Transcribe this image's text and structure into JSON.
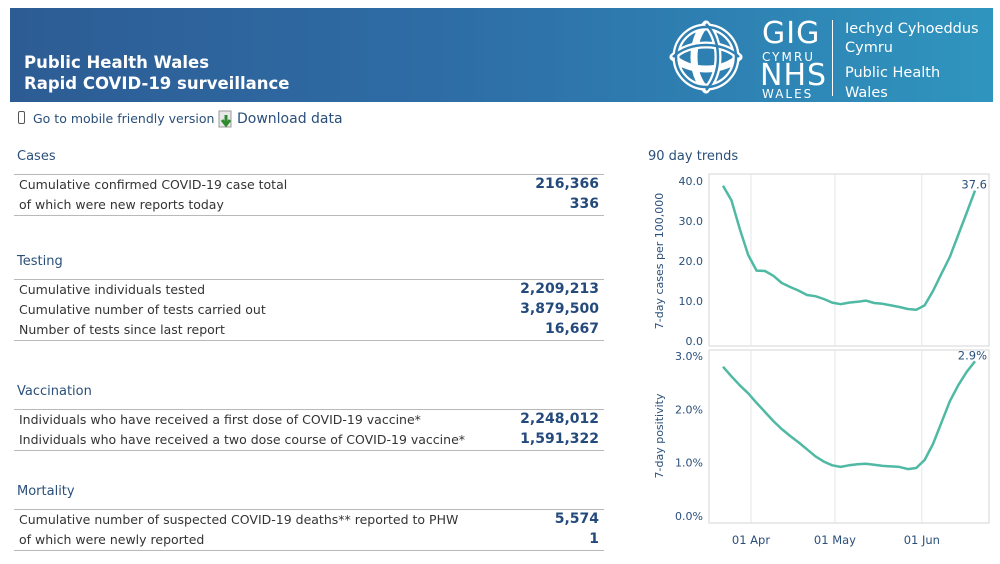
{
  "header": {
    "title_line1": "Public Health Wales",
    "title_line2": "Rapid COVID-19 surveillance",
    "logo_gig": "GIG",
    "logo_cymru": "CYMRU",
    "logo_nhs": "NHS",
    "logo_wales": "WALES",
    "org_line1": "Iechyd Cyhoeddus",
    "org_line2": "Cymru",
    "org_line3": "Public Health",
    "org_line4": "Wales"
  },
  "toolbar": {
    "mobile_link": "Go to mobile friendly version",
    "download_link": "Download data"
  },
  "sections": {
    "cases": {
      "title": "Cases",
      "rows": [
        {
          "label": "Cumulative confirmed COVID-19 case total",
          "value": "216,366"
        },
        {
          "label": "of which were new reports today",
          "value": "336"
        }
      ]
    },
    "testing": {
      "title": "Testing",
      "rows": [
        {
          "label": "Cumulative individuals tested",
          "value": "2,209,213"
        },
        {
          "label": "Cumulative number of tests carried out",
          "value": "3,879,500"
        },
        {
          "label": "Number of tests since last report",
          "value": "16,667"
        }
      ]
    },
    "vaccination": {
      "title": "Vaccination",
      "rows": [
        {
          "label": "Individuals who have received a first dose of COVID-19 vaccine*",
          "value": "2,248,012"
        },
        {
          "label": "Individuals who have received a two dose course of COVID-19 vaccine*",
          "value": "1,591,322"
        }
      ]
    },
    "mortality": {
      "title": "Mortality",
      "rows": [
        {
          "label": "Cumulative number of suspected COVID-19 deaths** reported to PHW",
          "value": "5,574"
        },
        {
          "label": "of which were newly reported",
          "value": "1"
        }
      ]
    }
  },
  "trends": {
    "title": "90 day trends",
    "line_color": "#4fb9a4",
    "x_ticks": [
      "01 Apr",
      "01 May",
      "01 Jun"
    ]
  },
  "chart_data": [
    {
      "type": "line",
      "ylabel": "7-day cases per 100,000",
      "ylim": [
        0,
        40
      ],
      "y_ticks": [
        "40.0",
        "30.0",
        "20.0",
        "10.0",
        "0.0"
      ],
      "end_label": "37.6",
      "x": [
        "22 Mar",
        "25 Mar",
        "28 Mar",
        "31 Mar",
        "03 Apr",
        "06 Apr",
        "09 Apr",
        "12 Apr",
        "15 Apr",
        "18 Apr",
        "21 Apr",
        "24 Apr",
        "27 Apr",
        "30 Apr",
        "03 May",
        "06 May",
        "09 May",
        "12 May",
        "15 May",
        "18 May",
        "21 May",
        "24 May",
        "27 May",
        "30 May",
        "02 Jun",
        "05 Jun",
        "08 Jun",
        "11 Jun",
        "14 Jun",
        "17 Jun",
        "19 Jun"
      ],
      "series": [
        {
          "values": [
            38.8,
            35.2,
            28.0,
            21.5,
            17.6,
            17.5,
            16.3,
            14.5,
            13.5,
            12.6,
            11.5,
            11.2,
            10.5,
            9.6,
            9.2,
            9.6,
            9.8,
            10.1,
            9.5,
            9.3,
            8.9,
            8.5,
            8.0,
            7.8,
            8.9,
            12.5,
            16.8,
            21.0,
            26.5,
            32.0,
            37.6
          ]
        }
      ]
    },
    {
      "type": "line",
      "ylabel": "7-day positivity",
      "ylim": [
        0,
        3
      ],
      "y_ticks": [
        "3.0%",
        "2.0%",
        "1.0%",
        "0.0%"
      ],
      "end_label": "2.9%",
      "x": [
        "22 Mar",
        "25 Mar",
        "28 Mar",
        "31 Mar",
        "03 Apr",
        "06 Apr",
        "09 Apr",
        "12 Apr",
        "15 Apr",
        "18 Apr",
        "21 Apr",
        "24 Apr",
        "27 Apr",
        "30 Apr",
        "03 May",
        "06 May",
        "09 May",
        "12 May",
        "15 May",
        "18 May",
        "21 May",
        "24 May",
        "27 May",
        "30 May",
        "02 Jun",
        "05 Jun",
        "08 Jun",
        "11 Jun",
        "14 Jun",
        "17 Jun",
        "19 Jun"
      ],
      "series": [
        {
          "values": [
            2.8,
            2.62,
            2.45,
            2.3,
            2.12,
            1.95,
            1.78,
            1.63,
            1.5,
            1.38,
            1.25,
            1.12,
            1.02,
            0.95,
            0.92,
            0.95,
            0.97,
            0.98,
            0.96,
            0.94,
            0.93,
            0.92,
            0.88,
            0.9,
            1.05,
            1.35,
            1.75,
            2.15,
            2.45,
            2.7,
            2.9
          ]
        }
      ]
    }
  ]
}
